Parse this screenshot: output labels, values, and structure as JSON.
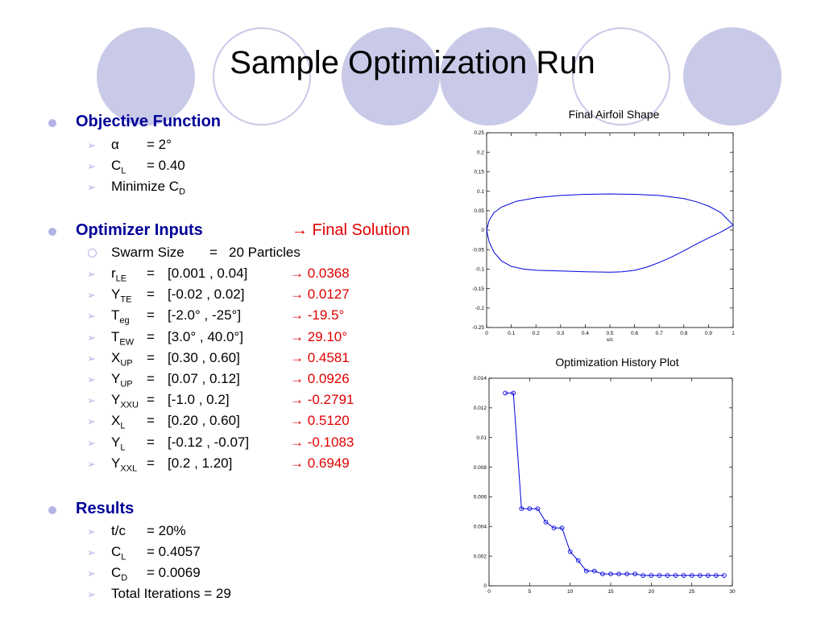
{
  "slide": {
    "title": "Sample Optimization Run"
  },
  "objective": {
    "heading": "Objective Function",
    "items": [
      {
        "name": "α",
        "sub": "",
        "eq": "=  2°"
      },
      {
        "name": "C",
        "sub": "L",
        "eq": "= 0.40"
      },
      {
        "name": "Minimize C",
        "sub": "D",
        "eq": ""
      }
    ]
  },
  "optimizer": {
    "heading": "Optimizer Inputs",
    "final_label": "→ Final Solution",
    "swarm": {
      "name": "Swarm Size",
      "eq": "=",
      "value": "20 Particles"
    },
    "params": [
      {
        "name": "r",
        "sub": "LE",
        "eq": "=",
        "range": "[0.001 , 0.04]",
        "final": "→ 0.0368"
      },
      {
        "name": "Y",
        "sub": "TE",
        "eq": "=",
        "range": "[-0.02 , 0.02]",
        "final": "→ 0.0127"
      },
      {
        "name": "T",
        "sub": "eg",
        "eq": "=",
        "range": "[-2.0° , -25°]",
        "final": "→ -19.5°"
      },
      {
        "name": "T",
        "sub": "EW",
        "eq": "=",
        "range": "[3.0° , 40.0°]",
        "final": "→ 29.10°"
      },
      {
        "name": "X",
        "sub": "UP",
        "eq": "=",
        "range": "[0.30 , 0.60]",
        "final": "→ 0.4581"
      },
      {
        "name": "Y",
        "sub": "UP",
        "eq": "=",
        "range": "[0.07 , 0.12]",
        "final": "→ 0.0926"
      },
      {
        "name": "Y",
        "sub": "XXU",
        "eq": "=",
        "range": "[-1.0 , 0.2]",
        "final": "→ -0.2791"
      },
      {
        "name": "X",
        "sub": "L",
        "eq": "=",
        "range": "[0.20 , 0.60]",
        "final": "→ 0.5120"
      },
      {
        "name": "Y",
        "sub": "L",
        "eq": "=",
        "range": "[-0.12 , -0.07]",
        "final": "→ -0.1083"
      },
      {
        "name": "Y",
        "sub": "XXL",
        "eq": "=",
        "range": "[0.2 , 1.20]",
        "final": "→ 0.6949"
      }
    ]
  },
  "results": {
    "heading": "Results",
    "items": [
      {
        "name": "t/c",
        "sub": "",
        "eq": "= 20%"
      },
      {
        "name": "C",
        "sub": "L",
        "eq": "= 0.4057"
      },
      {
        "name": "C",
        "sub": "D",
        "eq": "= 0.0069"
      },
      {
        "name": "Total Iterations = 29",
        "sub": "",
        "eq": ""
      }
    ]
  },
  "colors": {
    "heading": "#000099",
    "final": "#e00000",
    "bullet": "#b3b3e6",
    "deco": "#c9c9e8",
    "line": "#0000dd"
  },
  "chart_data": [
    {
      "type": "line",
      "title": "Final Airfoil Shape",
      "xlabel": "x/c",
      "ylabel": "",
      "xlim": [
        0,
        1
      ],
      "ylim": [
        -0.25,
        0.25
      ],
      "xticks": [
        "0",
        "0.1",
        "0.2",
        "0.3",
        "0.4",
        "0.5",
        "0.6",
        "0.7",
        "0.8",
        "0.9",
        "1"
      ],
      "yticks": [
        "0.25",
        "0.2",
        "0.15",
        "0.1",
        "0.05",
        "0",
        "-0.05",
        "-0.1",
        "-0.15",
        "-0.2",
        "-0.25"
      ],
      "series": [
        {
          "x": [
            1.0,
            0.95,
            0.9,
            0.85,
            0.8,
            0.7,
            0.6,
            0.5,
            0.4,
            0.3,
            0.2,
            0.12,
            0.06,
            0.03,
            0.01,
            0.0
          ],
          "y": [
            0.013,
            0.045,
            0.062,
            0.073,
            0.081,
            0.089,
            0.092,
            0.093,
            0.092,
            0.089,
            0.083,
            0.074,
            0.059,
            0.045,
            0.025,
            0.0
          ]
        },
        {
          "x": [
            0.0,
            0.01,
            0.03,
            0.06,
            0.1,
            0.15,
            0.2,
            0.3,
            0.4,
            0.5,
            0.55,
            0.6,
            0.65,
            0.7,
            0.75,
            0.8,
            0.85,
            0.9,
            0.95,
            1.0
          ],
          "y": [
            0.0,
            -0.03,
            -0.057,
            -0.079,
            -0.093,
            -0.1,
            -0.103,
            -0.105,
            -0.107,
            -0.108,
            -0.107,
            -0.103,
            -0.095,
            -0.083,
            -0.069,
            -0.053,
            -0.036,
            -0.02,
            -0.005,
            0.013
          ]
        }
      ]
    },
    {
      "type": "line",
      "title": "Optimization History Plot",
      "xlabel": "",
      "ylabel": "",
      "xlim": [
        0,
        30
      ],
      "ylim": [
        0,
        0.014
      ],
      "xticks": [
        "0",
        "5",
        "10",
        "15",
        "20",
        "25",
        "30"
      ],
      "yticks": [
        "0.014",
        "0.012",
        "0.01",
        "0.008",
        "0.006",
        "0.004",
        "0.002",
        "0"
      ],
      "series": [
        {
          "x": [
            2,
            3,
            4,
            5,
            6,
            7,
            8,
            9,
            10,
            11,
            12,
            13,
            14,
            15,
            16,
            17,
            18,
            19,
            20,
            21,
            22,
            23,
            24,
            25,
            26,
            27,
            28,
            29
          ],
          "y": [
            0.013,
            0.013,
            0.0052,
            0.0052,
            0.0052,
            0.0043,
            0.0039,
            0.0039,
            0.0023,
            0.0017,
            0.001,
            0.001,
            0.0008,
            0.0008,
            0.0008,
            0.0008,
            0.0008,
            0.0007,
            0.0007,
            0.0007,
            0.0007,
            0.0007,
            0.0007,
            0.0007,
            0.0007,
            0.0007,
            0.0007,
            0.0007
          ]
        }
      ]
    }
  ]
}
